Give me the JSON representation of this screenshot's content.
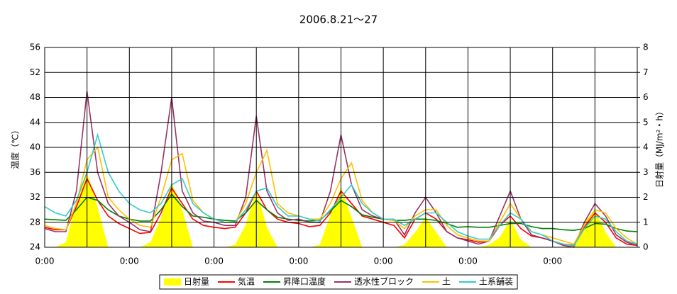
{
  "chart_data": {
    "type": "line",
    "title": "2006.8.21～27",
    "y_label": "温度（℃）",
    "y2_label": "日射量（MJ/m²・h）",
    "xlim": [
      0,
      168
    ],
    "xticks": [
      {
        "value": 0,
        "label": "0:00"
      },
      {
        "value": 12,
        "label": null
      },
      {
        "value": 24,
        "label": "0:00"
      },
      {
        "value": 36,
        "label": null
      },
      {
        "value": 48,
        "label": "0:00"
      },
      {
        "value": 60,
        "label": null
      },
      {
        "value": 72,
        "label": "0:00"
      },
      {
        "value": 84,
        "label": null
      },
      {
        "value": 96,
        "label": "0:00"
      },
      {
        "value": 108,
        "label": null
      },
      {
        "value": 120,
        "label": "0:00"
      },
      {
        "value": 132,
        "label": null
      },
      {
        "value": 144,
        "label": "0:00"
      },
      {
        "value": 156,
        "label": null
      },
      {
        "value": 168,
        "label": null
      }
    ],
    "ylim": [
      24,
      56
    ],
    "yticks": [
      24,
      28,
      32,
      36,
      40,
      44,
      48,
      52,
      56
    ],
    "y2lim": [
      0,
      8
    ],
    "y2ticks": [
      0,
      1,
      2,
      3,
      4,
      5,
      6,
      7,
      8
    ],
    "grid": true,
    "legend": "bottom",
    "x": [
      0,
      3,
      6,
      9,
      12,
      15,
      18,
      21,
      24,
      27,
      30,
      33,
      36,
      39,
      42,
      45,
      48,
      51,
      54,
      57,
      60,
      63,
      66,
      69,
      72,
      75,
      78,
      81,
      84,
      87,
      90,
      93,
      96,
      99,
      102,
      105,
      108,
      111,
      114,
      117,
      120,
      123,
      126,
      129,
      132,
      135,
      138,
      141,
      144,
      147,
      150,
      153,
      156,
      159,
      162,
      165,
      168
    ],
    "series": [
      {
        "name": "日射量",
        "color": "#ffff00",
        "axis": "y2",
        "style": "area",
        "values": [
          0,
          0,
          0.2,
          1.8,
          3,
          1.6,
          0,
          0,
          0,
          0,
          0.2,
          1.2,
          2.6,
          1.5,
          0,
          0,
          0,
          0,
          0.1,
          0.9,
          2.3,
          0.8,
          0,
          0,
          0,
          0,
          0.1,
          1.3,
          2.4,
          1.2,
          0,
          0,
          0,
          0,
          0.1,
          0.6,
          1.2,
          0.6,
          0,
          0,
          0,
          0,
          0.1,
          0.4,
          1.1,
          0.3,
          0,
          0,
          0,
          0,
          0.1,
          1.0,
          1.5,
          0.6,
          0,
          0,
          0
        ]
      },
      {
        "name": "気温",
        "color": "#ff0000",
        "values": [
          27.2,
          26.8,
          26.8,
          30.5,
          35,
          31.5,
          29,
          27.8,
          27,
          26.2,
          26.4,
          29.5,
          33.5,
          31,
          28.5,
          27.5,
          27.2,
          27,
          27.2,
          29.5,
          33,
          30,
          28.5,
          28,
          27.8,
          27.3,
          27.5,
          29.5,
          33,
          31,
          29,
          28.5,
          28,
          27.5,
          25.5,
          28.5,
          29.5,
          28.5,
          26.5,
          25.5,
          25.2,
          24.8,
          25,
          27.5,
          29,
          27,
          25.8,
          25.5,
          25,
          24.5,
          24.3,
          27.2,
          29.5,
          28,
          25.5,
          24.5,
          24.3
        ]
      },
      {
        "name": "昇降口温度",
        "color": "#008000",
        "values": [
          28.5,
          28.4,
          28.3,
          30,
          32,
          31.5,
          30,
          29,
          28.5,
          28.2,
          28.2,
          30,
          32.5,
          30.5,
          29,
          28.8,
          28.5,
          28.3,
          28.2,
          29.5,
          31.5,
          30,
          28.8,
          28.5,
          28.3,
          28.2,
          28.3,
          29.8,
          31.5,
          30.5,
          29.2,
          28.8,
          28.5,
          28.3,
          28.3,
          28.5,
          28.5,
          28.3,
          27.8,
          27.2,
          27.3,
          27.2,
          27.2,
          27.5,
          27.8,
          27.8,
          27.3,
          27,
          27,
          26.8,
          26.7,
          27,
          27.8,
          27.7,
          27,
          26.6,
          26.5
        ]
      },
      {
        "name": "透水性ブロック",
        "color": "#993366",
        "values": [
          27,
          26.5,
          26.5,
          33,
          49,
          36,
          31,
          29,
          28,
          26.8,
          26.5,
          36,
          48,
          33,
          29.5,
          28.2,
          28,
          27.5,
          27.5,
          32,
          45,
          33,
          29.5,
          28.3,
          28.5,
          28,
          28,
          33,
          42,
          34,
          30,
          29,
          28.5,
          28.5,
          26,
          29.5,
          32,
          29.5,
          26.5,
          25.5,
          25,
          24.5,
          25,
          29,
          33,
          28.5,
          26,
          25.5,
          25,
          24.3,
          24,
          28,
          31,
          29,
          26,
          24.8,
          24.3
        ]
      },
      {
        "name": "土",
        "color": "#ffc000",
        "values": [
          27.5,
          27,
          26.8,
          31,
          38,
          40,
          32,
          30,
          28.5,
          27.5,
          27.2,
          32,
          38,
          39,
          31.5,
          29.5,
          28.5,
          28,
          28,
          31,
          36,
          39.5,
          31,
          29.5,
          29,
          28.5,
          28.5,
          31,
          35,
          37.5,
          31.5,
          29.5,
          28.5,
          28.3,
          27,
          29,
          30,
          30,
          27.5,
          26,
          25.5,
          25,
          25,
          28,
          31,
          28.5,
          26.5,
          26,
          25.5,
          25,
          24.5,
          27.5,
          30,
          29.5,
          27,
          25.5,
          24.5
        ]
      },
      {
        "name": "土系舗装",
        "color": "#33cccc",
        "values": [
          30.5,
          29.5,
          29,
          31.5,
          36,
          42,
          36,
          33,
          31,
          30,
          29.5,
          31,
          34,
          35,
          31,
          29.5,
          28.5,
          28,
          28,
          30,
          33,
          33.5,
          30.5,
          29,
          29,
          28.5,
          28.2,
          30,
          32,
          34,
          31,
          29.5,
          28.5,
          28.5,
          27.5,
          28.5,
          29.5,
          29.5,
          28,
          26.5,
          25.8,
          25.3,
          25.3,
          27.5,
          29.5,
          28.5,
          26.5,
          26,
          25,
          24.5,
          24.2,
          27,
          29,
          28.5,
          26.5,
          25,
          24.5
        ]
      }
    ]
  }
}
